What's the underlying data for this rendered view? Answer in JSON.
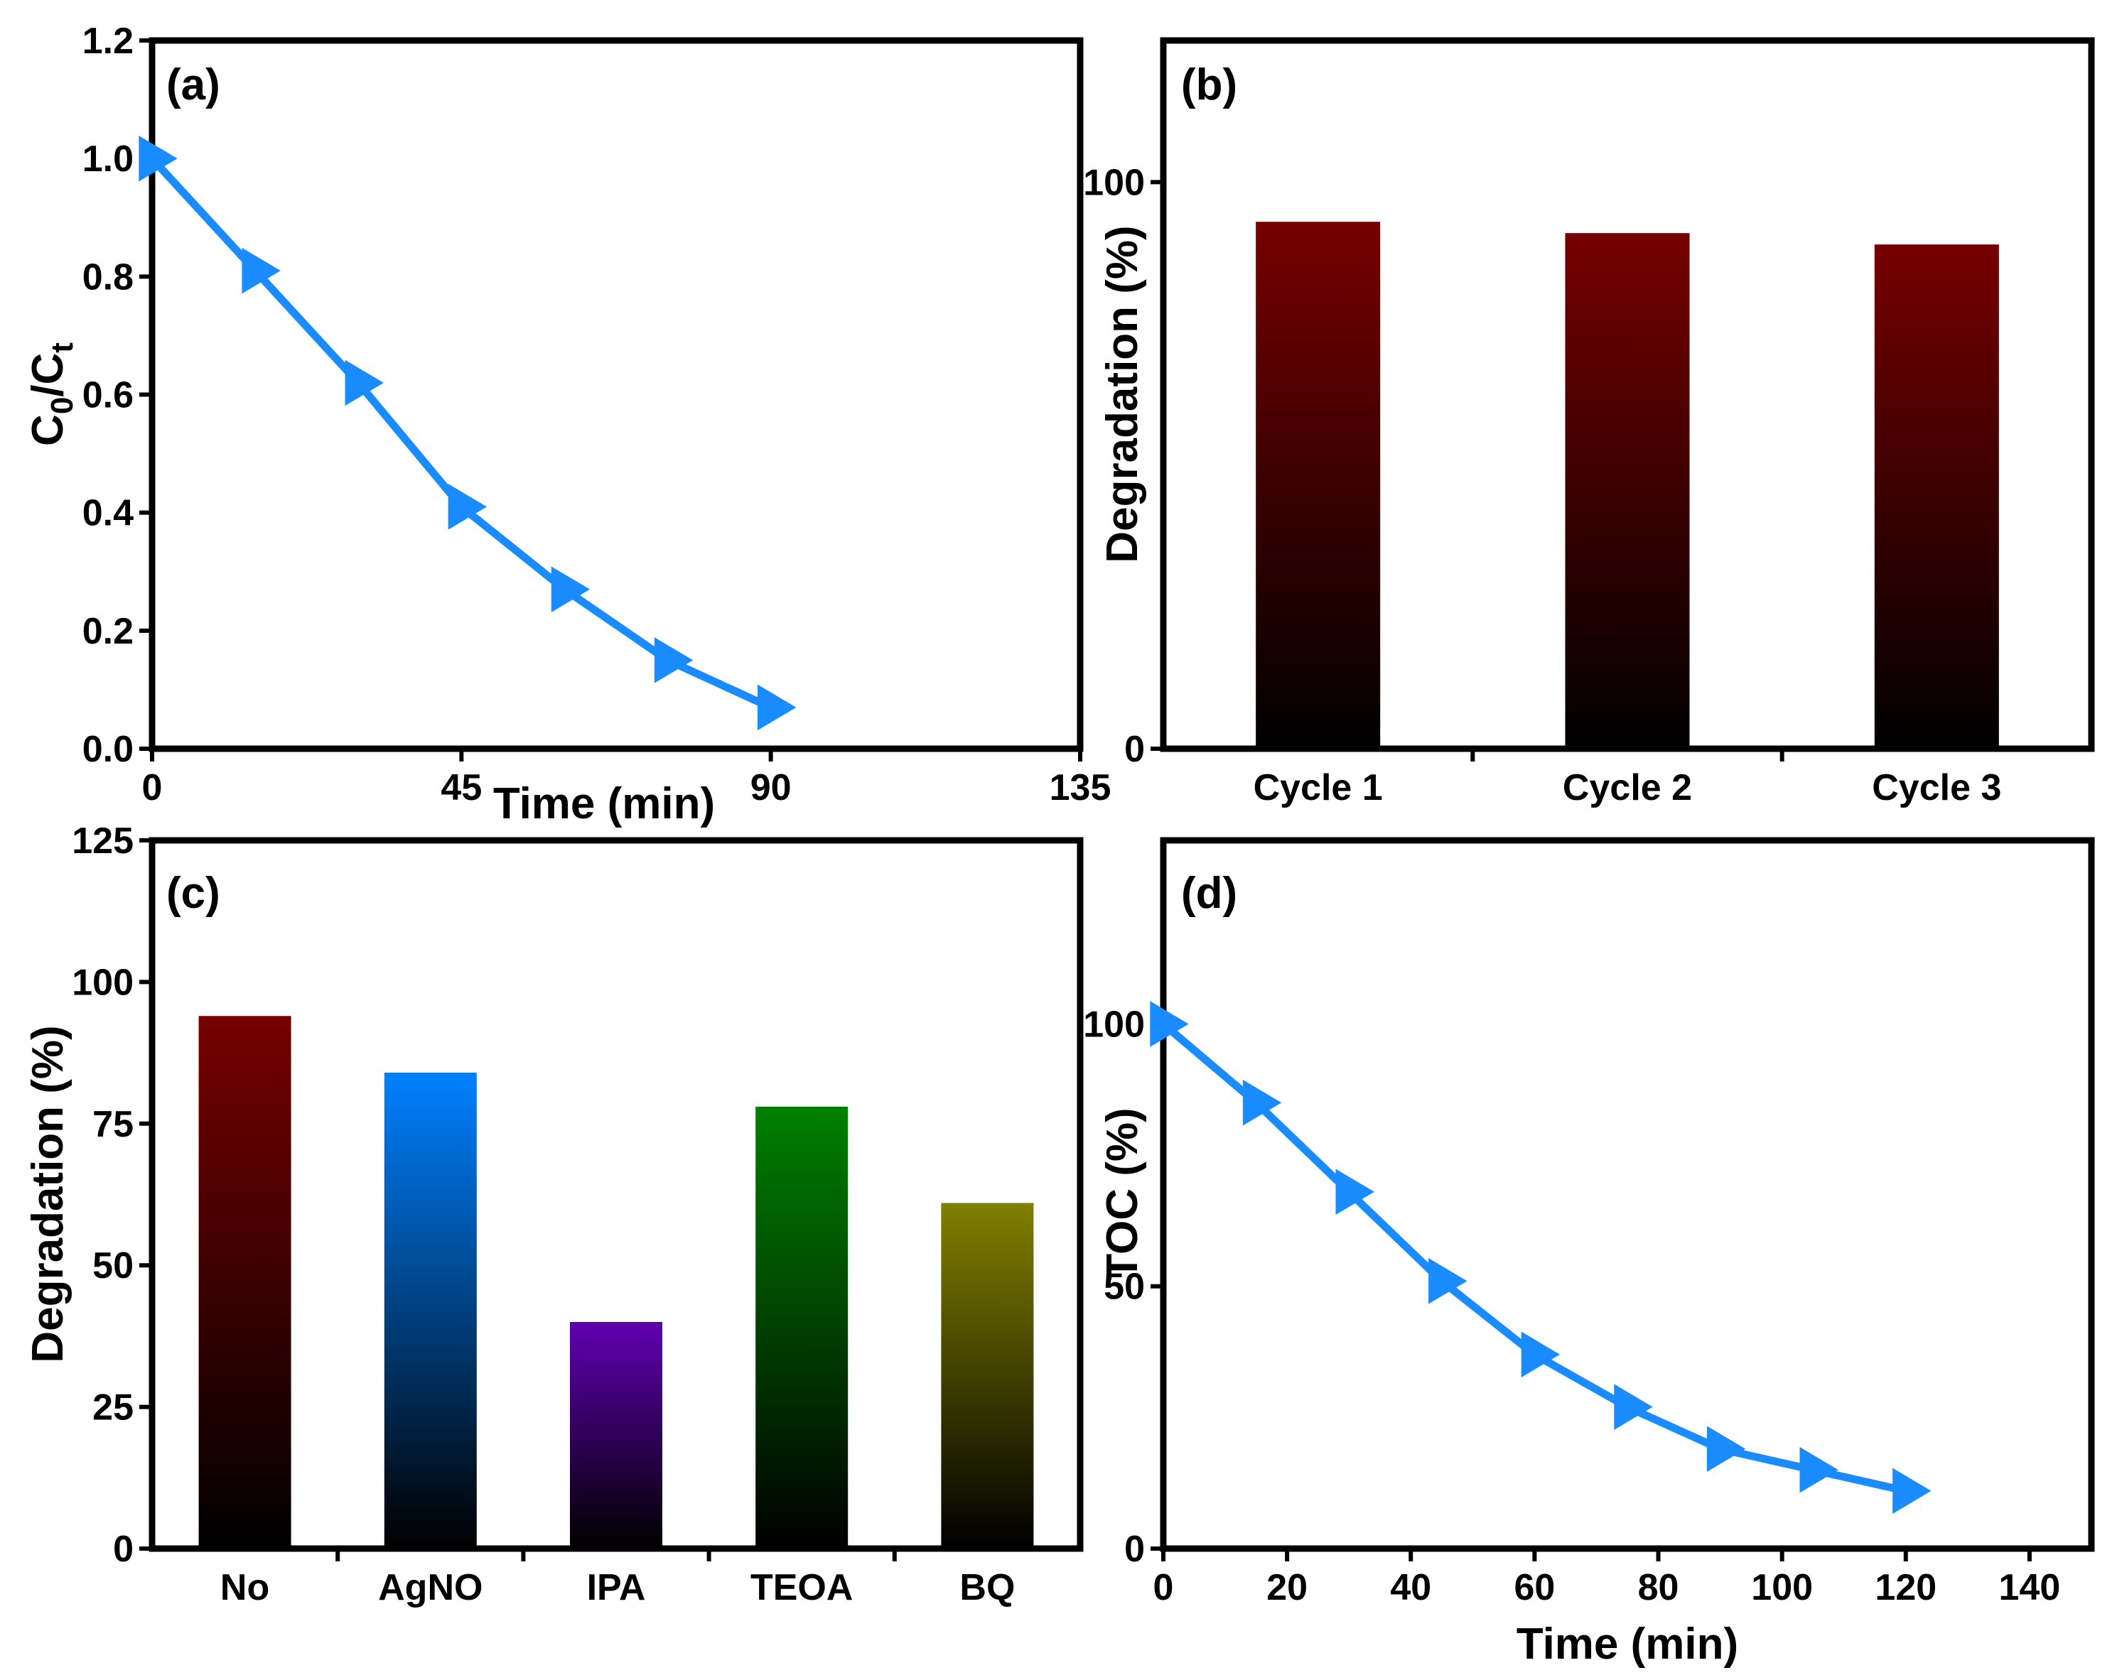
{
  "chart_data": [
    {
      "panel": "(a)",
      "type": "line",
      "xlabel": "Time (min)",
      "ylabel": {
        "main": "C",
        "sub1": "0",
        "mid": "/C",
        "sub2": "t"
      },
      "xlim": [
        0,
        135
      ],
      "ylim": [
        0,
        1.2
      ],
      "xticks": [
        "0",
        "45",
        "90",
        "135"
      ],
      "yticks": [
        "0.0",
        "0.2",
        "0.4",
        "0.6",
        "0.8",
        "1.0",
        "1.2"
      ],
      "x": [
        0,
        15,
        30,
        45,
        60,
        75,
        90
      ],
      "y": [
        1.0,
        0.81,
        0.62,
        0.41,
        0.27,
        0.15,
        0.07
      ],
      "color": "#1a8cff"
    },
    {
      "panel": "(b)",
      "type": "bar",
      "ylabel": "Degradation (%)",
      "ylim": [
        0,
        125
      ],
      "yticks": [
        "0",
        "100"
      ],
      "categories": [
        "Cycle 1",
        "Cycle 2",
        "Cycle 3"
      ],
      "values": [
        93,
        91,
        89
      ],
      "colors": [
        "#760000",
        "#760000",
        "#760000"
      ]
    },
    {
      "panel": "(c)",
      "type": "bar",
      "ylabel": "Degradation (%)",
      "ylim": [
        0,
        125
      ],
      "yticks": [
        "0",
        "25",
        "50",
        "75",
        "100",
        "125"
      ],
      "categories": [
        "No",
        "AgNO",
        "IPA",
        "TEOA",
        "BQ"
      ],
      "values": [
        94,
        84,
        40,
        78,
        61
      ],
      "colors": [
        "#760000",
        "#0080ff",
        "#6000b0",
        "#008000",
        "#808000"
      ]
    },
    {
      "panel": "(d)",
      "type": "line",
      "xlabel": "Time (min)",
      "ylabel": "TOC (%)",
      "xlim": [
        0,
        150
      ],
      "ylim": [
        0,
        135
      ],
      "xticks": [
        "0",
        "20",
        "40",
        "60",
        "80",
        "100",
        "120",
        "140"
      ],
      "yticks": [
        "0",
        "50",
        "100"
      ],
      "x": [
        0,
        15,
        30,
        45,
        60,
        75,
        90,
        105,
        120
      ],
      "y": [
        100,
        85,
        68,
        51,
        37,
        27,
        19,
        15,
        11
      ],
      "color": "#1a8cff"
    }
  ]
}
